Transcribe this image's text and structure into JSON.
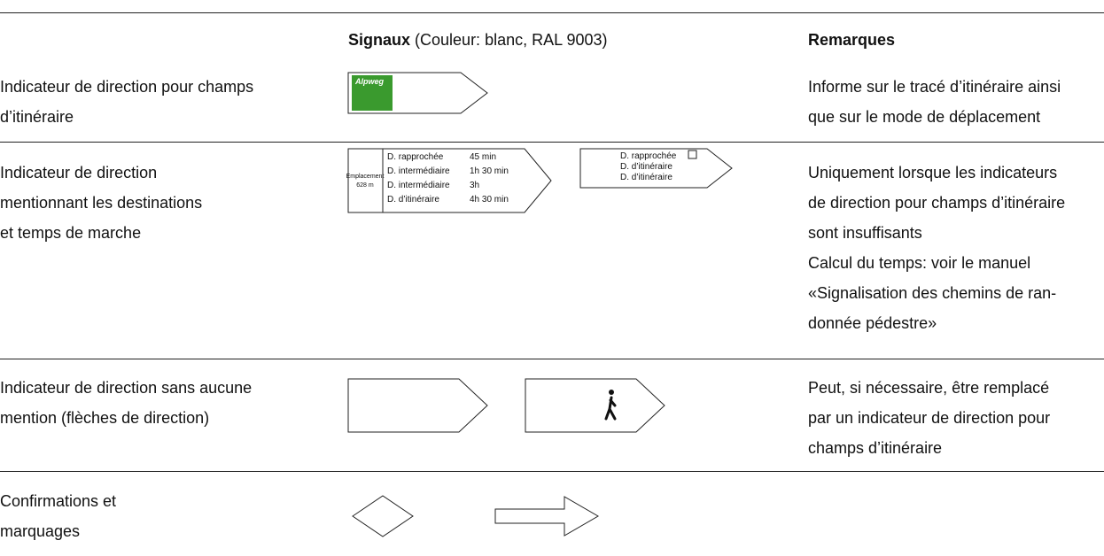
{
  "header": {
    "signaux": {
      "title": "Signaux",
      "note": "(Couleur: blanc, RAL 9003)"
    },
    "remarques": "Remarques"
  },
  "rows": [
    {
      "label": [
        "Indicateur de direction pour champs",
        "d’itinéraire"
      ],
      "sign": {
        "text": "Alpweg"
      },
      "remarks": [
        "Informe sur le tracé d’itinéraire ainsi",
        "que sur le mode de déplacement"
      ]
    },
    {
      "label": [
        "Indicateur de direction",
        "mentionnant les destinations",
        "et temps de marche"
      ],
      "sign": {
        "location": [
          "Emplacement",
          "628 m"
        ],
        "destinations": [
          {
            "name": "D. rapprochée",
            "time": "45 min"
          },
          {
            "name": "D. intermédiaire",
            "time": "1h 30 min"
          },
          {
            "name": "D. intermédiaire",
            "time": "3h"
          },
          {
            "name": "D. d’itinéraire",
            "time": "4h 30 min"
          }
        ]
      },
      "sign2": {
        "destinations": [
          "D. rapprochée",
          "D. d’itinéraire",
          "D. d’itinéraire"
        ]
      },
      "remarks": [
        "Uniquement lorsque les indicateurs",
        "de direction pour champs d’itinéraire",
        "sont insuffisants",
        "Calcul du temps: voir le manuel",
        "«Signalisation des chemins de ran-",
        "donnée pédestre»"
      ]
    },
    {
      "label": [
        "Indicateur de direction sans aucune",
        "mention (flèches de direction)"
      ],
      "remarks": [
        "Peut, si nécessaire, être remplacé",
        "par un indicateur de direction pour",
        "champs d’itinéraire"
      ]
    },
    {
      "label": [
        "Confirmations et",
        "marquages"
      ],
      "remarks": []
    }
  ]
}
